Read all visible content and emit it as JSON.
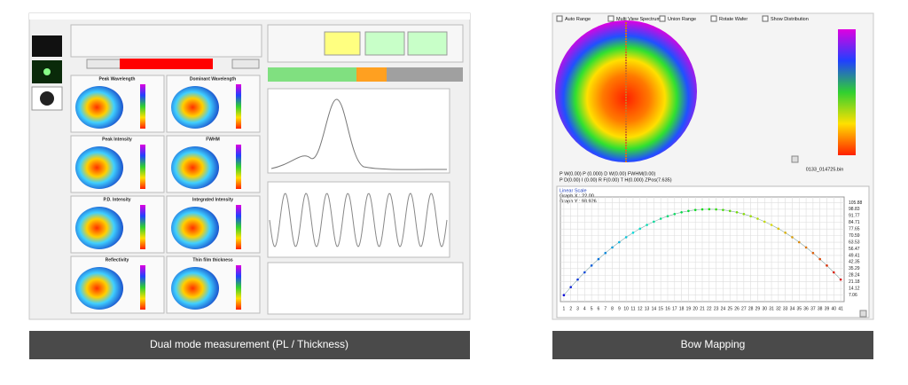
{
  "panels": [
    {
      "caption": "Dual mode measurement (PL / Thickness)",
      "map_titles": [
        "Peak Wavelength",
        "Dominant Wavelength",
        "Peak Intensity",
        "FWHM",
        "P.D. Intensity",
        "Integrated Intensity",
        "Reflectivity",
        "Thin film thickness"
      ]
    },
    {
      "caption": "Bow Mapping",
      "checkboxes": [
        "Auto Range",
        "Multi View Spectrum",
        "Union Range",
        "Rotate Wafer",
        "Show Distribution"
      ],
      "status_lines": [
        "P W(0.00) P (0.000) D W(0.00) FWHM(0.00)",
        "P D(0.00) I (0.00) R F(0.00) T H(0.000) ZPos(7.635)"
      ],
      "file_name": "0133_014725.bin",
      "bow_chart": {
        "type": "line",
        "title": "Linear Scale",
        "readout": [
          "Graph X : 22.00",
          "Graph Y : 98.926"
        ],
        "x": [
          1,
          2,
          3,
          4,
          5,
          6,
          7,
          8,
          9,
          10,
          11,
          12,
          13,
          14,
          15,
          16,
          17,
          18,
          19,
          20,
          21,
          22,
          23,
          24,
          25,
          26,
          27,
          28,
          29,
          30,
          31,
          32,
          33,
          34,
          35,
          36,
          37,
          38,
          39,
          40,
          41
        ],
        "values": [
          6.9,
          15.5,
          23.6,
          31.3,
          38.6,
          45.5,
          52.0,
          58.0,
          63.6,
          68.9,
          73.7,
          78.0,
          82.0,
          85.5,
          88.7,
          91.4,
          93.7,
          95.6,
          97.0,
          98.1,
          98.7,
          98.9,
          98.7,
          98.1,
          97.0,
          95.6,
          93.7,
          91.4,
          88.7,
          85.5,
          82.0,
          78.0,
          73.7,
          68.9,
          63.6,
          58.0,
          52.0,
          45.5,
          38.6,
          31.3,
          23.6
        ],
        "xlim": [
          0.5,
          41.5
        ],
        "ylim": [
          0,
          112
        ],
        "yticks": [
          7.06,
          14.12,
          21.18,
          28.24,
          35.29,
          42.35,
          49.41,
          56.47,
          63.53,
          70.59,
          77.65,
          84.71,
          91.77,
          98.83,
          105.88
        ],
        "grid": true
      }
    }
  ]
}
